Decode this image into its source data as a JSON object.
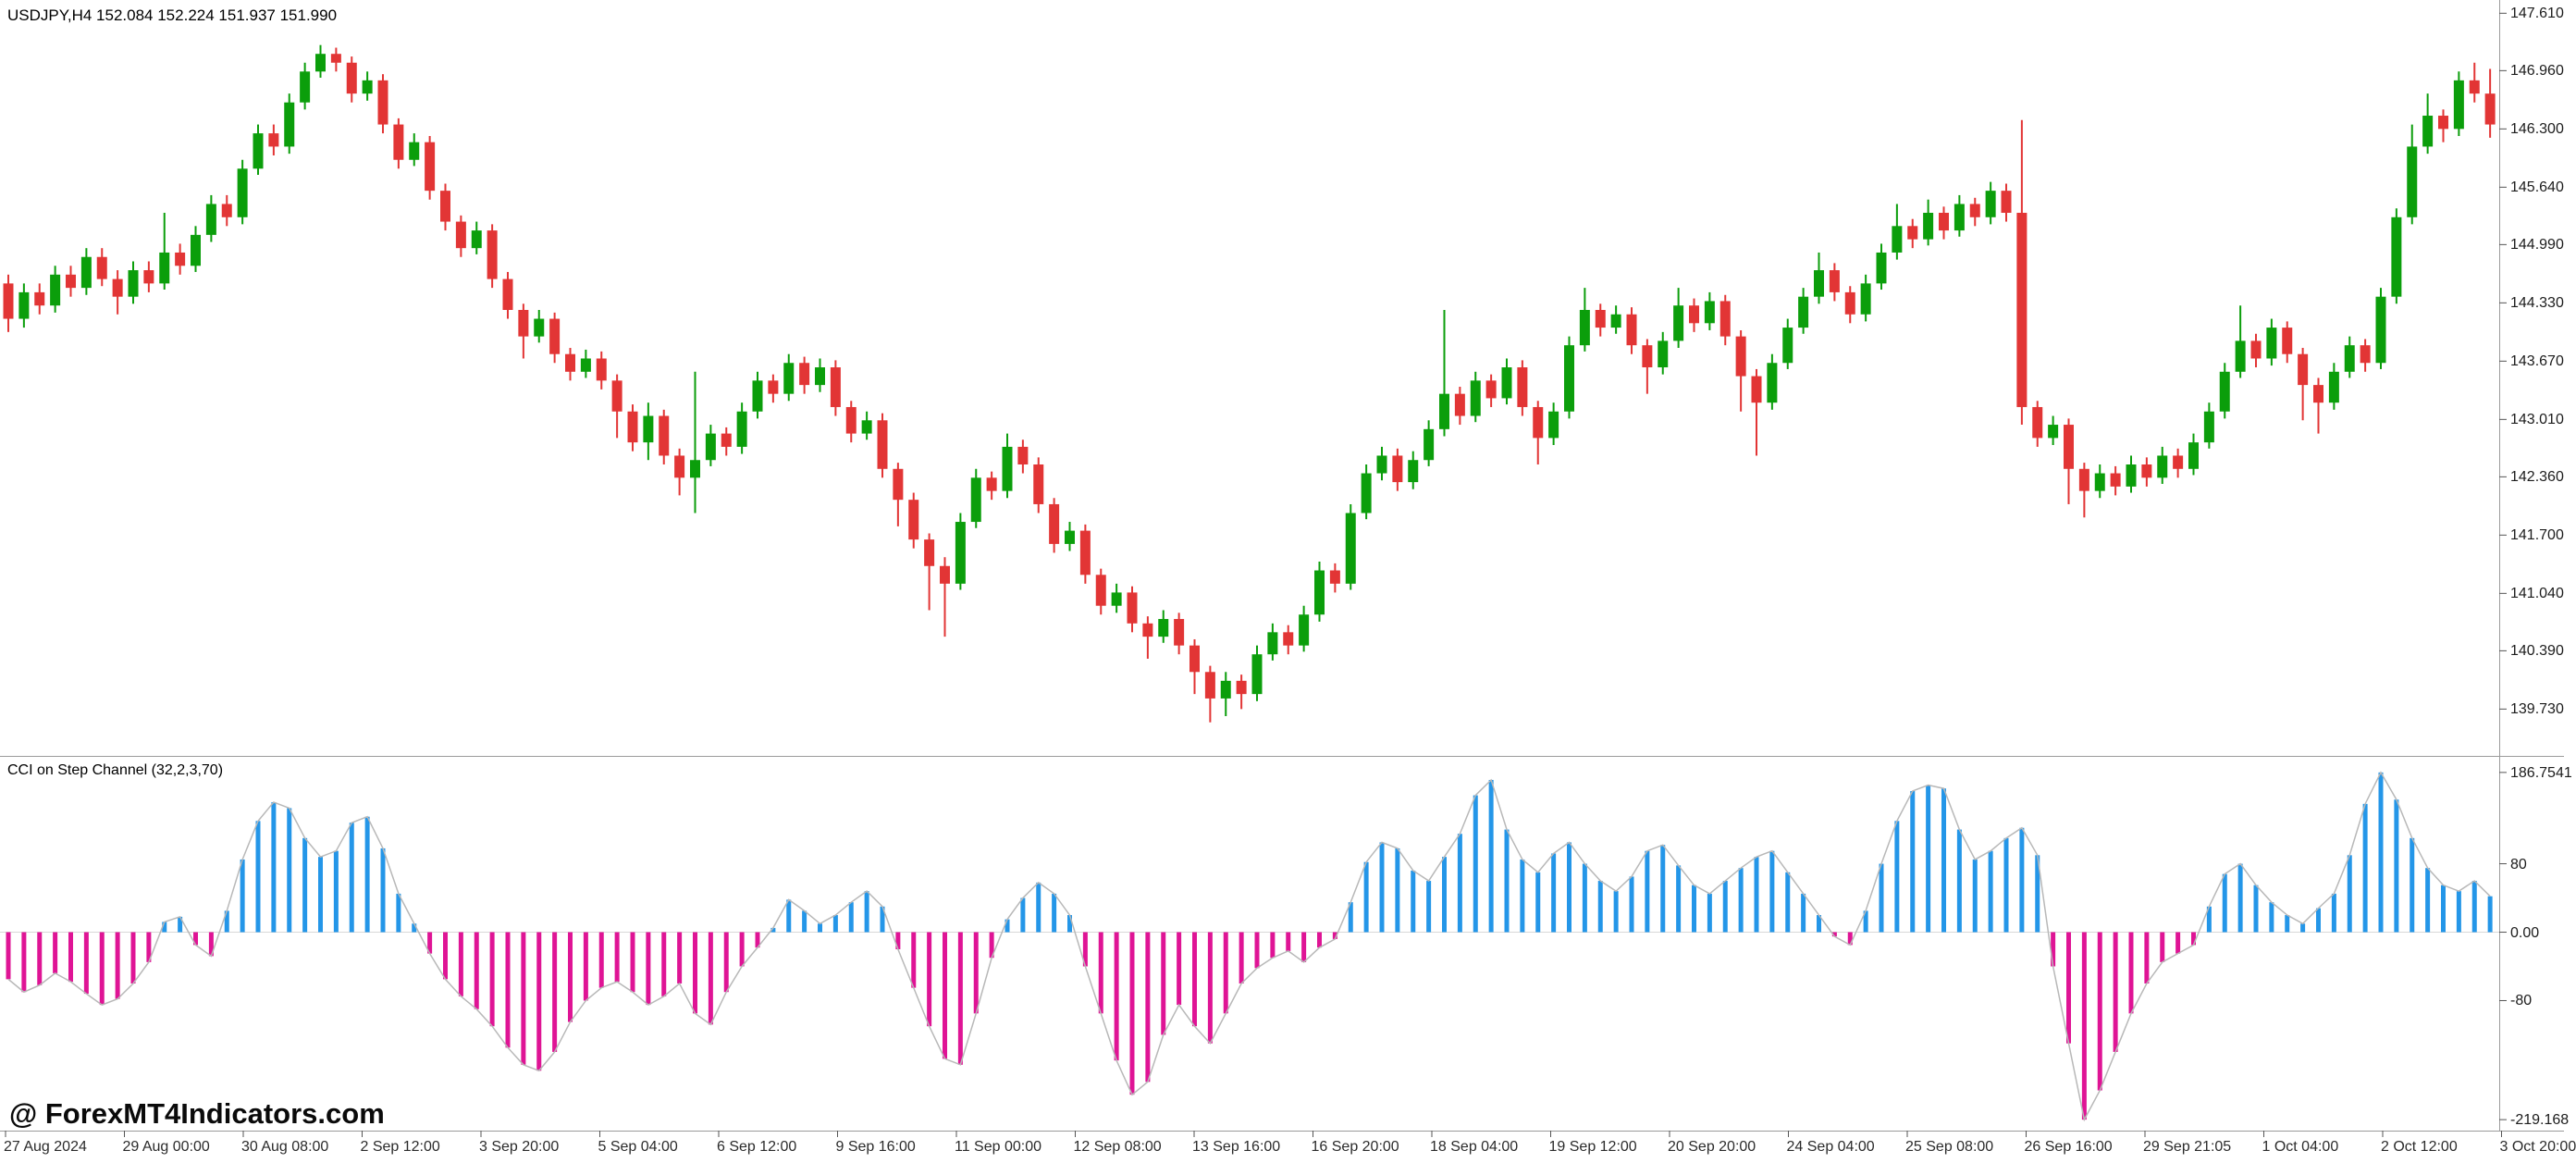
{
  "watermark": "@ ForexMT4Indicators.com",
  "colors": {
    "bull": "#0b9e0b",
    "bear": "#e23535",
    "cci_up": "#2496e8",
    "cci_down": "#df1495",
    "cci_line": "#b8b8b8",
    "separator": "#9b9b9b",
    "tick": "#555555",
    "zero_line": "#d8d8d8"
  },
  "chart_data": [
    {
      "type": "candlestick",
      "title": "USDJPY,H4 152.084 152.224 151.937 151.990",
      "symbol": "USDJPY",
      "timeframe": "H4",
      "y_ticks": [
        "147.610",
        "146.960",
        "146.300",
        "145.640",
        "144.990",
        "144.330",
        "143.670",
        "143.010",
        "142.360",
        "141.700",
        "141.040",
        "140.390",
        "139.730"
      ],
      "ylim": [
        139.21,
        147.76
      ],
      "x_tick_labels": [
        "27 Aug 2024",
        "29 Aug 00:00",
        "30 Aug 08:00",
        "2 Sep 12:00",
        "3 Sep 20:00",
        "5 Sep 04:00",
        "6 Sep 12:00",
        "9 Sep 16:00",
        "11 Sep 00:00",
        "12 Sep 08:00",
        "13 Sep 16:00",
        "16 Sep 20:00",
        "18 Sep 04:00",
        "19 Sep 12:00",
        "20 Sep 20:00",
        "24 Sep 04:00",
        "25 Sep 08:00",
        "26 Sep 16:00",
        "29 Sep 21:05",
        "1 Oct 04:00",
        "2 Oct 12:00",
        "3 Oct 20:00"
      ],
      "candles": [
        [
          144.55,
          144.65,
          144.0,
          144.15
        ],
        [
          144.15,
          144.55,
          144.05,
          144.45
        ],
        [
          144.45,
          144.55,
          144.2,
          144.3
        ],
        [
          144.3,
          144.75,
          144.22,
          144.65
        ],
        [
          144.65,
          144.75,
          144.4,
          144.5
        ],
        [
          144.5,
          144.95,
          144.42,
          144.85
        ],
        [
          144.85,
          144.95,
          144.52,
          144.6
        ],
        [
          144.6,
          144.7,
          144.2,
          144.4
        ],
        [
          144.4,
          144.8,
          144.32,
          144.7
        ],
        [
          144.7,
          144.8,
          144.45,
          144.55
        ],
        [
          144.55,
          145.35,
          144.48,
          144.9
        ],
        [
          144.9,
          145.0,
          144.65,
          144.75
        ],
        [
          144.75,
          145.2,
          144.68,
          145.1
        ],
        [
          145.1,
          145.55,
          145.02,
          145.45
        ],
        [
          145.45,
          145.55,
          145.2,
          145.3
        ],
        [
          145.3,
          145.95,
          145.22,
          145.85
        ],
        [
          145.85,
          146.35,
          145.78,
          146.25
        ],
        [
          146.25,
          146.35,
          146.0,
          146.1
        ],
        [
          146.1,
          146.7,
          146.02,
          146.6
        ],
        [
          146.6,
          147.05,
          146.52,
          146.95
        ],
        [
          146.95,
          147.25,
          146.88,
          147.15
        ],
        [
          147.15,
          147.22,
          146.95,
          147.05
        ],
        [
          147.05,
          147.12,
          146.6,
          146.7
        ],
        [
          146.7,
          146.95,
          146.62,
          146.85
        ],
        [
          146.85,
          146.92,
          146.25,
          146.35
        ],
        [
          146.35,
          146.42,
          145.85,
          145.95
        ],
        [
          145.95,
          146.25,
          145.88,
          146.15
        ],
        [
          146.15,
          146.22,
          145.5,
          145.6
        ],
        [
          145.6,
          145.68,
          145.15,
          145.25
        ],
        [
          145.25,
          145.32,
          144.85,
          144.95
        ],
        [
          144.95,
          145.25,
          144.88,
          145.15
        ],
        [
          145.15,
          145.22,
          144.5,
          144.6
        ],
        [
          144.6,
          144.68,
          144.15,
          144.25
        ],
        [
          144.25,
          144.32,
          143.7,
          143.95
        ],
        [
          143.95,
          144.25,
          143.88,
          144.15
        ],
        [
          144.15,
          144.22,
          143.65,
          143.75
        ],
        [
          143.75,
          143.82,
          143.45,
          143.55
        ],
        [
          143.55,
          143.8,
          143.48,
          143.7
        ],
        [
          143.7,
          143.78,
          143.35,
          143.45
        ],
        [
          143.45,
          143.52,
          142.8,
          143.1
        ],
        [
          143.1,
          143.18,
          142.65,
          142.75
        ],
        [
          142.75,
          143.2,
          142.55,
          143.05
        ],
        [
          143.05,
          143.12,
          142.5,
          142.6
        ],
        [
          142.6,
          142.68,
          142.15,
          142.35
        ],
        [
          142.35,
          143.55,
          141.95,
          142.55
        ],
        [
          142.55,
          142.95,
          142.48,
          142.85
        ],
        [
          142.85,
          142.92,
          142.6,
          142.7
        ],
        [
          142.7,
          143.2,
          142.62,
          143.1
        ],
        [
          143.1,
          143.55,
          143.02,
          143.45
        ],
        [
          143.45,
          143.52,
          143.2,
          143.3
        ],
        [
          143.3,
          143.75,
          143.22,
          143.65
        ],
        [
          143.65,
          143.72,
          143.3,
          143.4
        ],
        [
          143.4,
          143.7,
          143.32,
          143.6
        ],
        [
          143.6,
          143.68,
          143.05,
          143.15
        ],
        [
          143.15,
          143.22,
          142.75,
          142.85
        ],
        [
          142.85,
          143.1,
          142.78,
          143.0
        ],
        [
          143.0,
          143.08,
          142.35,
          142.45
        ],
        [
          142.45,
          142.52,
          141.8,
          142.1
        ],
        [
          142.1,
          142.18,
          141.55,
          141.65
        ],
        [
          141.65,
          141.72,
          140.85,
          141.35
        ],
        [
          141.35,
          141.45,
          140.55,
          141.15
        ],
        [
          141.15,
          141.95,
          141.08,
          141.85
        ],
        [
          141.85,
          142.45,
          141.78,
          142.35
        ],
        [
          142.35,
          142.42,
          142.1,
          142.2
        ],
        [
          142.2,
          142.85,
          142.12,
          142.7
        ],
        [
          142.7,
          142.78,
          142.4,
          142.5
        ],
        [
          142.5,
          142.58,
          141.95,
          142.05
        ],
        [
          142.05,
          142.12,
          141.5,
          141.6
        ],
        [
          141.6,
          141.85,
          141.52,
          141.75
        ],
        [
          141.75,
          141.82,
          141.15,
          141.25
        ],
        [
          141.25,
          141.32,
          140.8,
          140.9
        ],
        [
          140.9,
          141.15,
          140.82,
          141.05
        ],
        [
          141.05,
          141.12,
          140.6,
          140.7
        ],
        [
          140.7,
          140.78,
          140.3,
          140.55
        ],
        [
          140.55,
          140.85,
          140.48,
          140.75
        ],
        [
          140.75,
          140.82,
          140.35,
          140.45
        ],
        [
          140.45,
          140.52,
          139.9,
          140.15
        ],
        [
          140.15,
          140.22,
          139.58,
          139.85
        ],
        [
          139.85,
          140.15,
          139.65,
          140.05
        ],
        [
          140.05,
          140.12,
          139.73,
          139.9
        ],
        [
          139.9,
          140.45,
          139.82,
          140.35
        ],
        [
          140.35,
          140.7,
          140.28,
          140.6
        ],
        [
          140.6,
          140.68,
          140.35,
          140.45
        ],
        [
          140.45,
          140.9,
          140.38,
          140.8
        ],
        [
          140.8,
          141.4,
          140.72,
          141.3
        ],
        [
          141.3,
          141.38,
          141.05,
          141.15
        ],
        [
          141.15,
          142.05,
          141.08,
          141.95
        ],
        [
          141.95,
          142.5,
          141.88,
          142.4
        ],
        [
          142.4,
          142.7,
          142.32,
          142.6
        ],
        [
          142.6,
          142.68,
          142.2,
          142.3
        ],
        [
          142.3,
          142.65,
          142.22,
          142.55
        ],
        [
          142.55,
          143.0,
          142.48,
          142.9
        ],
        [
          142.9,
          144.25,
          142.82,
          143.3
        ],
        [
          143.3,
          143.38,
          142.95,
          143.05
        ],
        [
          143.05,
          143.55,
          142.98,
          143.45
        ],
        [
          143.45,
          143.52,
          143.15,
          143.25
        ],
        [
          143.25,
          143.7,
          143.18,
          143.6
        ],
        [
          143.6,
          143.68,
          143.05,
          143.15
        ],
        [
          143.15,
          143.22,
          142.5,
          142.8
        ],
        [
          142.8,
          143.2,
          142.72,
          143.1
        ],
        [
          143.1,
          143.95,
          143.02,
          143.85
        ],
        [
          143.85,
          144.5,
          143.78,
          144.25
        ],
        [
          144.25,
          144.32,
          143.95,
          144.05
        ],
        [
          144.05,
          144.3,
          143.98,
          144.2
        ],
        [
          144.2,
          144.28,
          143.75,
          143.85
        ],
        [
          143.85,
          143.92,
          143.3,
          143.6
        ],
        [
          143.6,
          144.0,
          143.52,
          143.9
        ],
        [
          143.9,
          144.5,
          143.82,
          144.3
        ],
        [
          144.3,
          144.38,
          144.0,
          144.1
        ],
        [
          144.1,
          144.45,
          144.02,
          144.35
        ],
        [
          144.35,
          144.42,
          143.85,
          143.95
        ],
        [
          143.95,
          144.02,
          143.1,
          143.5
        ],
        [
          143.5,
          143.58,
          142.6,
          143.2
        ],
        [
          143.2,
          143.75,
          143.12,
          143.65
        ],
        [
          143.65,
          144.15,
          143.58,
          144.05
        ],
        [
          144.05,
          144.5,
          143.98,
          144.4
        ],
        [
          144.4,
          144.9,
          144.32,
          144.7
        ],
        [
          144.7,
          144.78,
          144.35,
          144.45
        ],
        [
          144.45,
          144.52,
          144.1,
          144.2
        ],
        [
          144.2,
          144.65,
          144.12,
          144.55
        ],
        [
          144.55,
          145.0,
          144.48,
          144.9
        ],
        [
          144.9,
          145.45,
          144.82,
          145.2
        ],
        [
          145.2,
          145.28,
          144.95,
          145.05
        ],
        [
          145.05,
          145.5,
          144.98,
          145.35
        ],
        [
          145.35,
          145.42,
          145.05,
          145.15
        ],
        [
          145.15,
          145.55,
          145.08,
          145.45
        ],
        [
          145.45,
          145.52,
          145.2,
          145.3
        ],
        [
          145.3,
          145.7,
          145.22,
          145.6
        ],
        [
          145.6,
          145.68,
          145.25,
          145.35
        ],
        [
          145.35,
          146.4,
          142.95,
          143.15
        ],
        [
          143.15,
          143.22,
          142.7,
          142.8
        ],
        [
          142.8,
          143.05,
          142.72,
          142.95
        ],
        [
          142.95,
          143.02,
          142.05,
          142.45
        ],
        [
          142.45,
          142.52,
          141.9,
          142.2
        ],
        [
          142.2,
          142.5,
          142.12,
          142.4
        ],
        [
          142.4,
          142.48,
          142.15,
          142.25
        ],
        [
          142.25,
          142.6,
          142.18,
          142.5
        ],
        [
          142.5,
          142.58,
          142.25,
          142.35
        ],
        [
          142.35,
          142.7,
          142.28,
          142.6
        ],
        [
          142.6,
          142.68,
          142.35,
          142.45
        ],
        [
          142.45,
          142.85,
          142.38,
          142.75
        ],
        [
          142.75,
          143.2,
          142.68,
          143.1
        ],
        [
          143.1,
          143.65,
          143.02,
          143.55
        ],
        [
          143.55,
          144.3,
          143.48,
          143.9
        ],
        [
          143.9,
          143.98,
          143.6,
          143.7
        ],
        [
          143.7,
          144.15,
          143.62,
          144.05
        ],
        [
          144.05,
          144.12,
          143.65,
          143.75
        ],
        [
          143.75,
          143.82,
          143.0,
          143.4
        ],
        [
          143.4,
          143.48,
          142.85,
          143.2
        ],
        [
          143.2,
          143.65,
          143.12,
          143.55
        ],
        [
          143.55,
          143.95,
          143.48,
          143.85
        ],
        [
          143.85,
          143.92,
          143.55,
          143.65
        ],
        [
          143.65,
          144.5,
          143.58,
          144.4
        ],
        [
          144.4,
          145.4,
          144.32,
          145.3
        ],
        [
          145.3,
          146.35,
          145.22,
          146.1
        ],
        [
          146.1,
          146.7,
          146.02,
          146.45
        ],
        [
          146.45,
          146.52,
          146.15,
          146.3
        ],
        [
          146.3,
          146.95,
          146.22,
          146.85
        ],
        [
          146.85,
          147.05,
          146.6,
          146.7
        ],
        [
          146.7,
          146.98,
          146.2,
          146.35
        ]
      ]
    },
    {
      "type": "bar",
      "title": "CCI on Step Channel (32,2,3,70)",
      "y_ticks": [
        {
          "v": 186.7541,
          "label": "186.7541"
        },
        {
          "v": 80,
          "label": "80"
        },
        {
          "v": 0,
          "label": "0.00"
        },
        {
          "v": -80,
          "label": "-80"
        },
        {
          "v": -219.168,
          "label": "-219.168"
        }
      ],
      "ylim": [
        -232,
        205
      ],
      "values": [
        -55,
        -70,
        -62,
        -48,
        -58,
        -72,
        -85,
        -78,
        -60,
        -35,
        12,
        18,
        -15,
        -28,
        25,
        85,
        130,
        152,
        145,
        110,
        88,
        95,
        128,
        135,
        98,
        45,
        10,
        -25,
        -55,
        -75,
        -90,
        -110,
        -135,
        -155,
        -162,
        -140,
        -105,
        -80,
        -65,
        -58,
        -70,
        -85,
        -75,
        -60,
        -95,
        -108,
        -70,
        -40,
        -18,
        5,
        38,
        25,
        10,
        20,
        35,
        48,
        30,
        -20,
        -65,
        -110,
        -148,
        -155,
        -95,
        -30,
        15,
        40,
        58,
        45,
        20,
        -40,
        -95,
        -150,
        -190,
        -175,
        -120,
        -85,
        -110,
        -130,
        -95,
        -60,
        -42,
        -30,
        -22,
        -35,
        -18,
        -8,
        35,
        82,
        105,
        98,
        72,
        60,
        88,
        115,
        160,
        178,
        120,
        85,
        70,
        92,
        105,
        80,
        60,
        48,
        65,
        95,
        102,
        78,
        55,
        45,
        60,
        75,
        88,
        95,
        70,
        45,
        20,
        -5,
        -15,
        25,
        80,
        130,
        165,
        172,
        168,
        120,
        85,
        95,
        110,
        122,
        90,
        -40,
        -130,
        -219.168,
        -185,
        -140,
        -95,
        -60,
        -35,
        -25,
        -15,
        30,
        68,
        80,
        55,
        35,
        20,
        10,
        28,
        45,
        90,
        150,
        186.7541,
        155,
        110,
        75,
        55,
        48,
        60,
        42
      ]
    }
  ]
}
